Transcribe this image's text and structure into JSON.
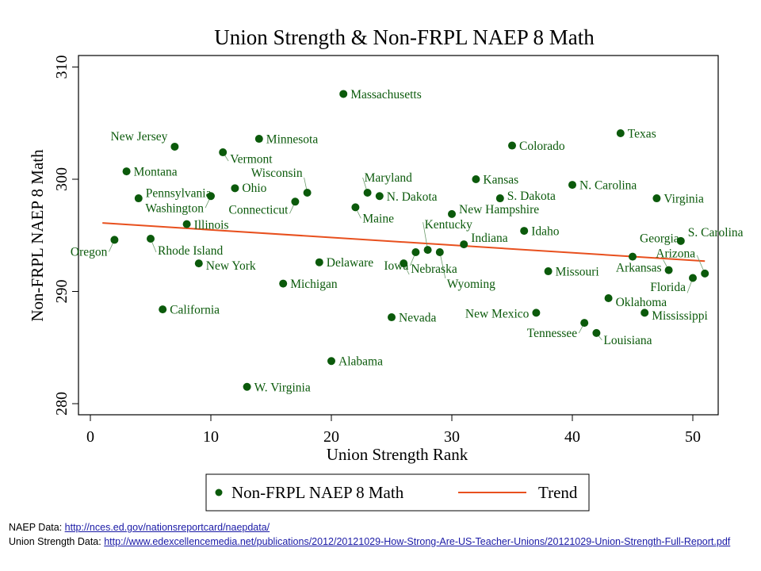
{
  "chart_data": {
    "type": "scatter",
    "title": "Union Strength & Non-FRPL NAEP 8 Math",
    "xlabel": "Union Strength Rank",
    "ylabel": "Non-FRPL NAEP 8 Math",
    "xlim": [
      -0.5,
      52
    ],
    "ylim": [
      279.7,
      310.3
    ],
    "xticks": [
      0,
      10,
      20,
      30,
      40,
      50
    ],
    "yticks": [
      280,
      290,
      300,
      310
    ],
    "grid": false,
    "legend": {
      "placement": "bottom",
      "entries": [
        {
          "label": "Non-FRPL NAEP 8 Math",
          "type": "marker",
          "color": "#0b5a0b"
        },
        {
          "label": "Trend",
          "type": "line",
          "color": "#e8501e"
        }
      ]
    },
    "colors": {
      "points": "#0b5a0b",
      "labels": "#0b5a0b",
      "trend": "#e8501e"
    },
    "series": [
      {
        "name": "Non-FRPL NAEP 8 Math",
        "points": [
          {
            "label": "Oregon",
            "x": 2,
            "y": 294.6
          },
          {
            "label": "Montana",
            "x": 3,
            "y": 300.7
          },
          {
            "label": "Pennsylvania",
            "x": 4,
            "y": 298.3
          },
          {
            "label": "Rhode Island",
            "x": 5,
            "y": 294.7
          },
          {
            "label": "California",
            "x": 6,
            "y": 288.4
          },
          {
            "label": "New Jersey",
            "x": 7,
            "y": 302.9
          },
          {
            "label": "Illinois",
            "x": 8,
            "y": 296.0
          },
          {
            "label": "New York",
            "x": 9,
            "y": 292.5
          },
          {
            "label": "Washington",
            "x": 10,
            "y": 298.5
          },
          {
            "label": "Vermont",
            "x": 11,
            "y": 302.4
          },
          {
            "label": "Ohio",
            "x": 12,
            "y": 299.2
          },
          {
            "label": "W. Virginia",
            "x": 13,
            "y": 281.5
          },
          {
            "label": "Minnesota",
            "x": 14,
            "y": 303.6
          },
          {
            "label": "Michigan",
            "x": 16,
            "y": 290.7
          },
          {
            "label": "Connecticut",
            "x": 17,
            "y": 298.0
          },
          {
            "label": "Wisconsin",
            "x": 18,
            "y": 298.8
          },
          {
            "label": "Delaware",
            "x": 19,
            "y": 292.6
          },
          {
            "label": "Alabama",
            "x": 20,
            "y": 283.8
          },
          {
            "label": "Massachusetts",
            "x": 21,
            "y": 307.6
          },
          {
            "label": "Maine",
            "x": 22,
            "y": 297.5
          },
          {
            "label": "Maryland",
            "x": 23,
            "y": 298.8
          },
          {
            "label": "N. Dakota",
            "x": 24,
            "y": 298.5
          },
          {
            "label": "Nevada",
            "x": 25,
            "y": 287.7
          },
          {
            "label": "Nebraska",
            "x": 26,
            "y": 292.5
          },
          {
            "label": "Iowa",
            "x": 27,
            "y": 293.5
          },
          {
            "label": "Kentucky",
            "x": 28,
            "y": 293.7
          },
          {
            "label": "Wyoming",
            "x": 29,
            "y": 293.5
          },
          {
            "label": "New Hampshire",
            "x": 30,
            "y": 296.9
          },
          {
            "label": "Indiana",
            "x": 31,
            "y": 294.2
          },
          {
            "label": "Kansas",
            "x": 32,
            "y": 300.0
          },
          {
            "label": "S. Dakota",
            "x": 34,
            "y": 298.3
          },
          {
            "label": "Colorado",
            "x": 35,
            "y": 303.0
          },
          {
            "label": "Idaho",
            "x": 36,
            "y": 295.4
          },
          {
            "label": "New Mexico",
            "x": 37,
            "y": 288.1
          },
          {
            "label": "Missouri",
            "x": 38,
            "y": 291.8
          },
          {
            "label": "N. Carolina",
            "x": 40,
            "y": 299.5
          },
          {
            "label": "Tennessee",
            "x": 41,
            "y": 287.2
          },
          {
            "label": "Louisiana",
            "x": 42,
            "y": 286.3
          },
          {
            "label": "Oklahoma",
            "x": 43,
            "y": 289.4
          },
          {
            "label": "Texas",
            "x": 44,
            "y": 304.1
          },
          {
            "label": "Georgia",
            "x": 45,
            "y": 293.1
          },
          {
            "label": "Mississippi",
            "x": 46,
            "y": 288.1
          },
          {
            "label": "Virginia",
            "x": 47,
            "y": 298.3
          },
          {
            "label": "Arkansas",
            "x": 48,
            "y": 291.9
          },
          {
            "label": "S. Carolina",
            "x": 49,
            "y": 294.5
          },
          {
            "label": "Florida",
            "x": 50,
            "y": 291.2
          },
          {
            "label": "Arizona",
            "x": 51,
            "y": 291.6
          }
        ]
      },
      {
        "name": "Trend",
        "type": "line",
        "x": [
          1,
          51
        ],
        "y": [
          296.1,
          292.7
        ]
      }
    ]
  },
  "footer": {
    "naep_label": "NAEP Data: ",
    "naep_link": "http://nces.ed.gov/nationsreportcard/naepdata/",
    "union_label": "Union Strength Data: ",
    "union_link": "http://www.edexcellencemedia.net/publications/2012/20121029-How-Strong-Are-US-Teacher-Unions/20121029-Union-Strength-Full-Report.pdf"
  }
}
